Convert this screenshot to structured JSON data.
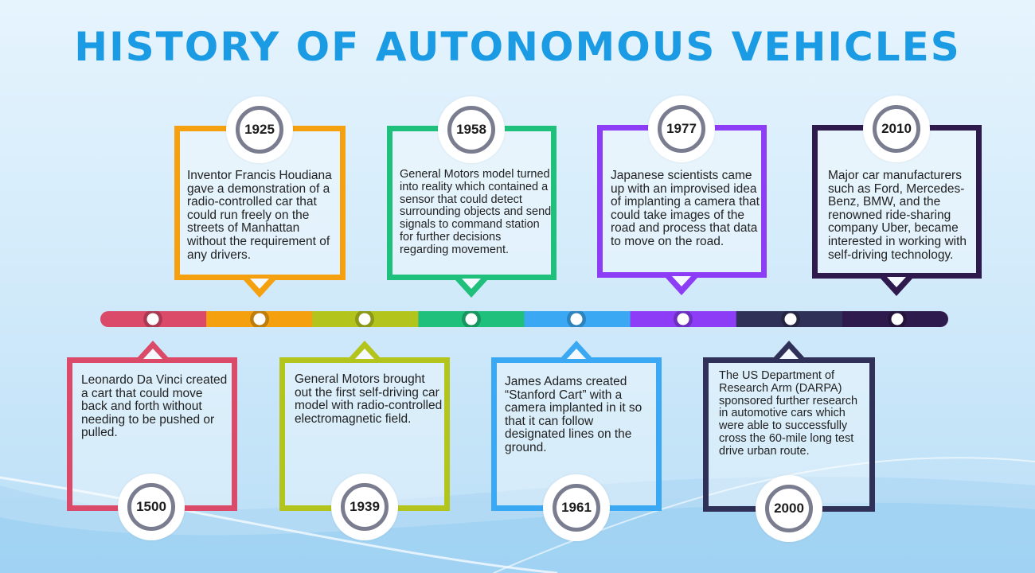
{
  "title": "HISTORY OF AUTONOMOUS VEHICLES",
  "segment_colors": [
    "#dc4a6a",
    "#f5a00f",
    "#b3c41d",
    "#1ec07b",
    "#3aa8f3",
    "#8c3df5",
    "#303158",
    "#2f1a4e"
  ],
  "events": [
    {
      "year": "1500",
      "color": "#dc4a6a",
      "text": "Leonardo Da Vinci created a cart that could move back and forth without needing to be pushed or pulled."
    },
    {
      "year": "1925",
      "color": "#f5a00f",
      "text": "Inventor Francis Houdiana gave a demonstration of a radio-controlled car that could run freely on the streets of Manhattan without the requirement of any drivers."
    },
    {
      "year": "1939",
      "color": "#b3c41d",
      "text": "General Motors brought out the first self-driving car model with radio-controlled electromagnetic field."
    },
    {
      "year": "1958",
      "color": "#1ec07b",
      "text": "General Motors model turned into reality which contained a sensor that could detect surrounding objects and send signals to command station for further decisions regarding movement."
    },
    {
      "year": "1961",
      "color": "#3aa8f3",
      "text": "James Adams created “Stanford Cart” with a camera implanted in it so that it can follow designated lines on the ground."
    },
    {
      "year": "1977",
      "color": "#8c3df5",
      "text": "Japanese scientists came up with an improvised idea of implanting a camera that could take images of the road and process that data to move on the road."
    },
    {
      "year": "2000",
      "color": "#303158",
      "text": "The US Department of Research Arm (DARPA) sponsored further research in automotive cars which were able to successfully cross the 60-mile long test drive urban route."
    },
    {
      "year": "2010",
      "color": "#2f1a4e",
      "text": "Major car manufacturers such as Ford, Mercedes-Benz, BMW, and the renowned ride-sharing company Uber, became interested in working with self-driving technology."
    }
  ]
}
